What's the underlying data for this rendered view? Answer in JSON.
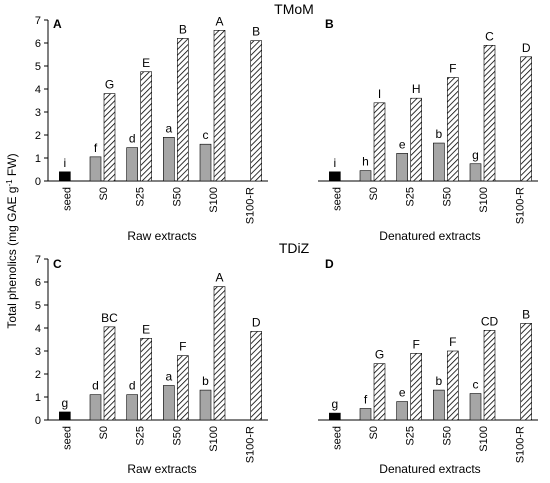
{
  "figure": {
    "ylabel": "Total phenolics (mg GAE g",
    "ylabel_sup": "-1",
    "ylabel_end": " FW)"
  },
  "chart_data": [
    {
      "type": "bar",
      "title": "TMoM",
      "panels": [
        {
          "letter": "A",
          "xlabel": "Raw extracts",
          "categories": [
            "seed",
            "S0",
            "S25",
            "S50",
            "S100",
            "S100-R"
          ],
          "ylim": [
            0,
            7
          ],
          "yticks": [
            "0",
            "1",
            "2",
            "3",
            "4",
            "5",
            "6",
            "7"
          ],
          "series": [
            {
              "values": [
                0.4,
                null,
                null,
                null,
                null,
                null
              ],
              "color": "#000000",
              "labels": [
                "i",
                "",
                "",
                "",
                "",
                ""
              ]
            },
            {
              "values": [
                null,
                1.05,
                1.45,
                1.9,
                1.6,
                null
              ],
              "color": "#a6a6a6",
              "labels": [
                "",
                "f",
                "d",
                "a",
                "c",
                ""
              ]
            },
            {
              "values": [
                null,
                3.8,
                4.75,
                6.2,
                6.55,
                6.1
              ],
              "color": "hatch",
              "labels": [
                "",
                "G",
                "E",
                "B",
                "A",
                "B"
              ]
            }
          ]
        },
        {
          "letter": "B",
          "xlabel": "Denatured extracts",
          "categories": [
            "seed",
            "S0",
            "S25",
            "S50",
            "S100",
            "S100-R"
          ],
          "ylim": [
            0,
            7
          ],
          "series": [
            {
              "values": [
                0.4,
                null,
                null,
                null,
                null,
                null
              ],
              "color": "#000000",
              "labels": [
                "i",
                "",
                "",
                "",
                "",
                ""
              ]
            },
            {
              "values": [
                null,
                0.45,
                1.2,
                1.65,
                0.75,
                null
              ],
              "color": "#a6a6a6",
              "labels": [
                "",
                "h",
                "e",
                "b",
                "g",
                ""
              ]
            },
            {
              "values": [
                null,
                3.4,
                3.6,
                4.5,
                5.9,
                5.4
              ],
              "color": "hatch",
              "labels": [
                "",
                "I",
                "H",
                "F",
                "C",
                "D"
              ]
            }
          ]
        }
      ]
    },
    {
      "type": "bar",
      "title": "TDiZ",
      "panels": [
        {
          "letter": "C",
          "xlabel": "Raw extracts",
          "categories": [
            "seed",
            "S0",
            "S25",
            "S50",
            "S100",
            "S100-R"
          ],
          "ylim": [
            0,
            7
          ],
          "yticks": [
            "0",
            "1",
            "2",
            "3",
            "4",
            "5",
            "6",
            "7"
          ],
          "series": [
            {
              "values": [
                0.35,
                null,
                null,
                null,
                null,
                null
              ],
              "color": "#000000",
              "labels": [
                "g",
                "",
                "",
                "",
                "",
                ""
              ]
            },
            {
              "values": [
                null,
                1.1,
                1.1,
                1.5,
                1.3,
                null
              ],
              "color": "#a6a6a6",
              "labels": [
                "",
                "d",
                "d",
                "a",
                "b",
                ""
              ]
            },
            {
              "values": [
                null,
                4.05,
                3.55,
                2.8,
                5.8,
                3.85
              ],
              "color": "hatch",
              "labels": [
                "",
                "BC",
                "E",
                "F",
                "A",
                "D"
              ]
            }
          ]
        },
        {
          "letter": "D",
          "xlabel": "Denatured extracts",
          "categories": [
            "seed",
            "S0",
            "S25",
            "S50",
            "S100",
            "S100-R"
          ],
          "ylim": [
            0,
            7
          ],
          "series": [
            {
              "values": [
                0.3,
                null,
                null,
                null,
                null,
                null
              ],
              "color": "#000000",
              "labels": [
                "g",
                "",
                "",
                "",
                "",
                ""
              ]
            },
            {
              "values": [
                null,
                0.5,
                0.8,
                1.3,
                1.15,
                null
              ],
              "color": "#a6a6a6",
              "labels": [
                "",
                "f",
                "e",
                "b",
                "c",
                ""
              ]
            },
            {
              "values": [
                null,
                2.45,
                2.9,
                3.0,
                3.9,
                4.2
              ],
              "color": "hatch",
              "labels": [
                "",
                "G",
                "F",
                "F",
                "CD",
                "B"
              ]
            }
          ]
        }
      ]
    }
  ]
}
